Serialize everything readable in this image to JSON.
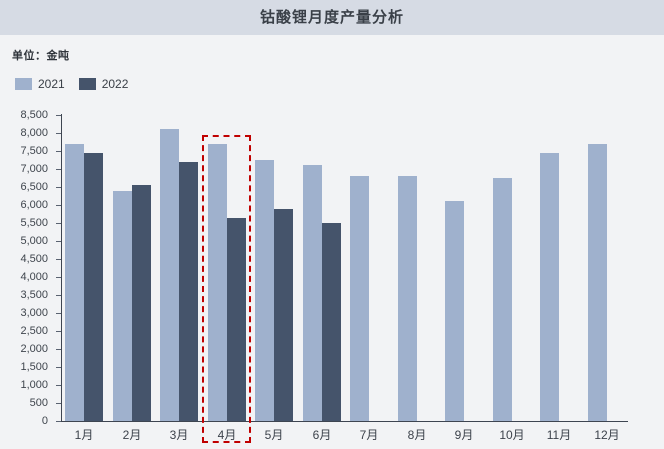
{
  "header": {
    "title": "钴酸锂月度产量分析"
  },
  "unit_label": "单位：金吨",
  "legend": {
    "items": [
      {
        "label": "2021",
        "color": "#9FB1CD"
      },
      {
        "label": "2022",
        "color": "#45546B"
      }
    ]
  },
  "chart_data": {
    "type": "bar",
    "title": "钴酸锂月度产量分析",
    "unit_label": "单位：金吨",
    "categories": [
      "1月",
      "2月",
      "3月",
      "4月",
      "5月",
      "6月",
      "7月",
      "8月",
      "9月",
      "10月",
      "11月",
      "12月"
    ],
    "series": [
      {
        "name": "2021",
        "color": "#9FB1CD",
        "values": [
          7700,
          6400,
          8100,
          7700,
          7250,
          7100,
          6800,
          6800,
          6100,
          6750,
          7450,
          7700
        ]
      },
      {
        "name": "2022",
        "color": "#45546B",
        "values": [
          7450,
          6550,
          7200,
          5650,
          5900,
          5500,
          null,
          null,
          null,
          null,
          null,
          null
        ]
      }
    ],
    "ylim": [
      0,
      8500
    ],
    "y_tick_step": 500,
    "y_tick_labels": [
      "0",
      "500",
      "1,000",
      "1,500",
      "2,000",
      "2,500",
      "3,000",
      "3,500",
      "4,000",
      "4,500",
      "5,000",
      "5,500",
      "6,000",
      "6,500",
      "7,000",
      "7,500",
      "8,000",
      "8,500"
    ],
    "grid": false,
    "legend_position": "top-left",
    "highlight": {
      "category": "4月",
      "style": "red-dashed-box",
      "color": "#C00000"
    }
  },
  "colors": {
    "title_band": "#D6DBE4",
    "background": "#F2F3F5",
    "axis": "#3E4551",
    "series_2021": "#9FB1CD",
    "series_2022": "#45546B",
    "highlight": "#C00000"
  }
}
